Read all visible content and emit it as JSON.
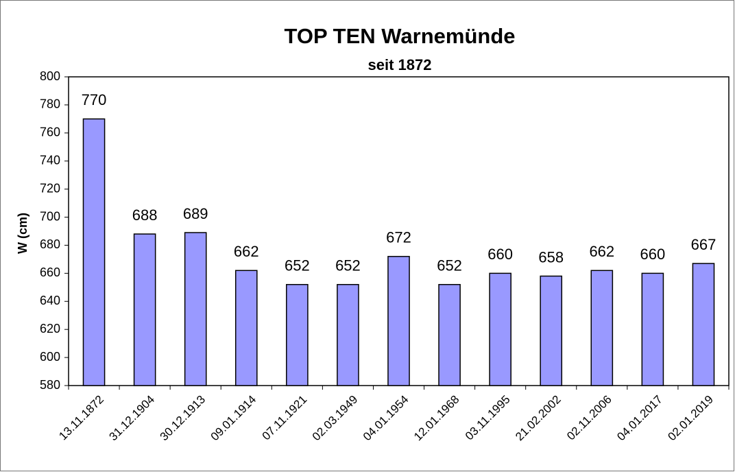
{
  "chart_data": {
    "type": "bar",
    "title": "TOP TEN Warnemünde",
    "subtitle": "seit 1872",
    "y_label": "W (cm)",
    "categories": [
      "13.11.1872",
      "31.12.1904",
      "30.12.1913",
      "09.01.1914",
      "07.11.1921",
      "02.03.1949",
      "04.01.1954",
      "12.01.1968",
      "03.11.1995",
      "21.02.2002",
      "02.11.2006",
      "04.01.2017",
      "02.01.2019"
    ],
    "values": [
      770,
      688,
      689,
      662,
      652,
      652,
      672,
      652,
      660,
      658,
      662,
      660,
      667
    ],
    "color": "#9999ff",
    "ylim": [
      580,
      800
    ],
    "yticks": [
      580,
      600,
      620,
      640,
      660,
      680,
      700,
      720,
      740,
      760,
      780,
      800
    ],
    "grid": false
  }
}
